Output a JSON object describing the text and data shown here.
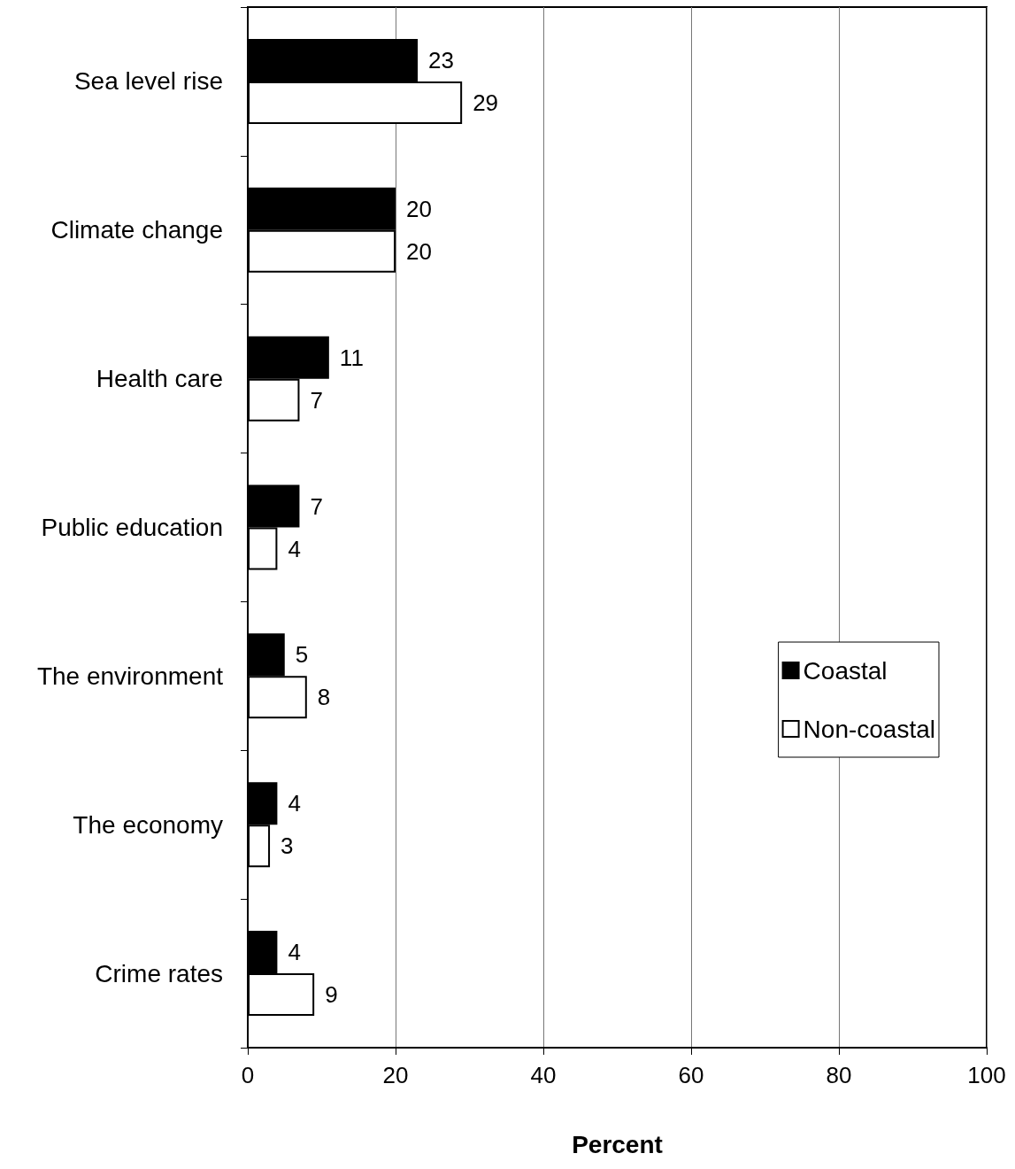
{
  "chart_data": {
    "type": "bar",
    "orientation": "horizontal",
    "xlabel": "Percent",
    "categories": [
      "Sea level rise",
      "Climate change",
      "Health care",
      "Public education",
      "The environment",
      "The economy",
      "Crime rates"
    ],
    "series": [
      {
        "name": "Coastal",
        "color": "#000000",
        "values": [
          23,
          20,
          11,
          7,
          5,
          4,
          4
        ]
      },
      {
        "name": "Non-coastal",
        "color": "#ffffff",
        "values": [
          29,
          20,
          7,
          4,
          8,
          3,
          9
        ]
      }
    ],
    "xlim": [
      0,
      100
    ],
    "xticks": [
      0,
      20,
      40,
      60,
      80,
      100
    ],
    "grid": "x",
    "legend": "right",
    "data_labels": true
  }
}
